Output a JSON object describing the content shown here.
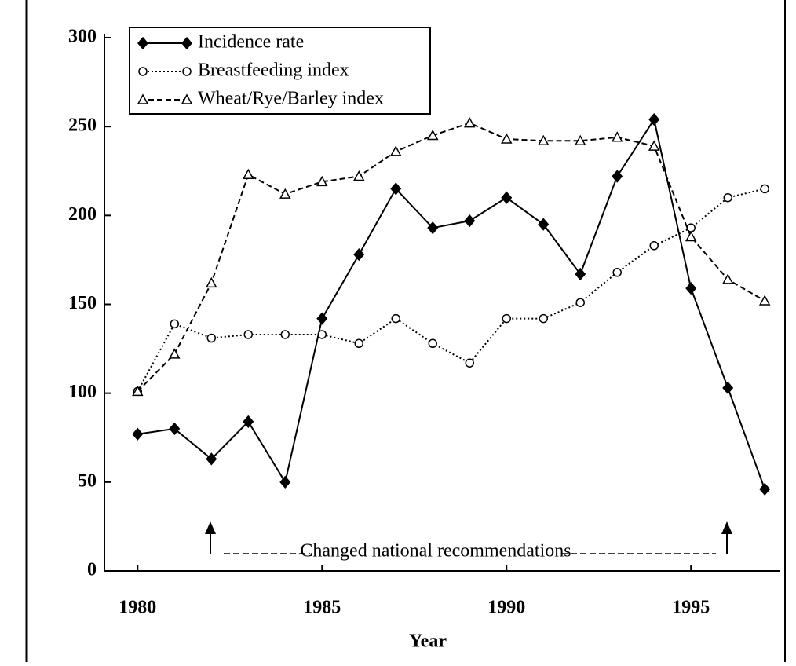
{
  "chart_data": {
    "type": "line",
    "x": [
      1980,
      1981,
      1982,
      1983,
      1984,
      1985,
      1986,
      1987,
      1988,
      1989,
      1990,
      1991,
      1992,
      1993,
      1994,
      1995,
      1996,
      1997
    ],
    "series": [
      {
        "name": "Incidence rate",
        "color": "#000000",
        "marker": "diamond",
        "line_style": "solid",
        "values": [
          77,
          80,
          63,
          84,
          50,
          142,
          178,
          215,
          193,
          197,
          210,
          195,
          167,
          222,
          254,
          159,
          103,
          46
        ]
      },
      {
        "name": "Breastfeeding index",
        "color": "#000000",
        "marker": "circle",
        "line_style": "dotted",
        "values": [
          101,
          139,
          131,
          133,
          133,
          133,
          128,
          142,
          128,
          117,
          142,
          142,
          151,
          168,
          183,
          193,
          210,
          215
        ]
      },
      {
        "name": "Wheat/Rye/Barley index",
        "color": "#000000",
        "marker": "triangle",
        "line_style": "dashed",
        "values": [
          101,
          122,
          162,
          223,
          212,
          219,
          222,
          236,
          245,
          252,
          243,
          242,
          242,
          244,
          239,
          188,
          164,
          152
        ]
      }
    ],
    "xlabel": "Year",
    "xlim": [
      1979.1,
      1997.4
    ],
    "xticks": [
      1980,
      1985,
      1990,
      1995
    ],
    "ylim": [
      0,
      300
    ],
    "yticks": [
      0,
      50,
      100,
      150,
      200,
      250,
      300
    ],
    "annotation": "Changed national recommendations",
    "legend": "upper left",
    "grid": false
  }
}
